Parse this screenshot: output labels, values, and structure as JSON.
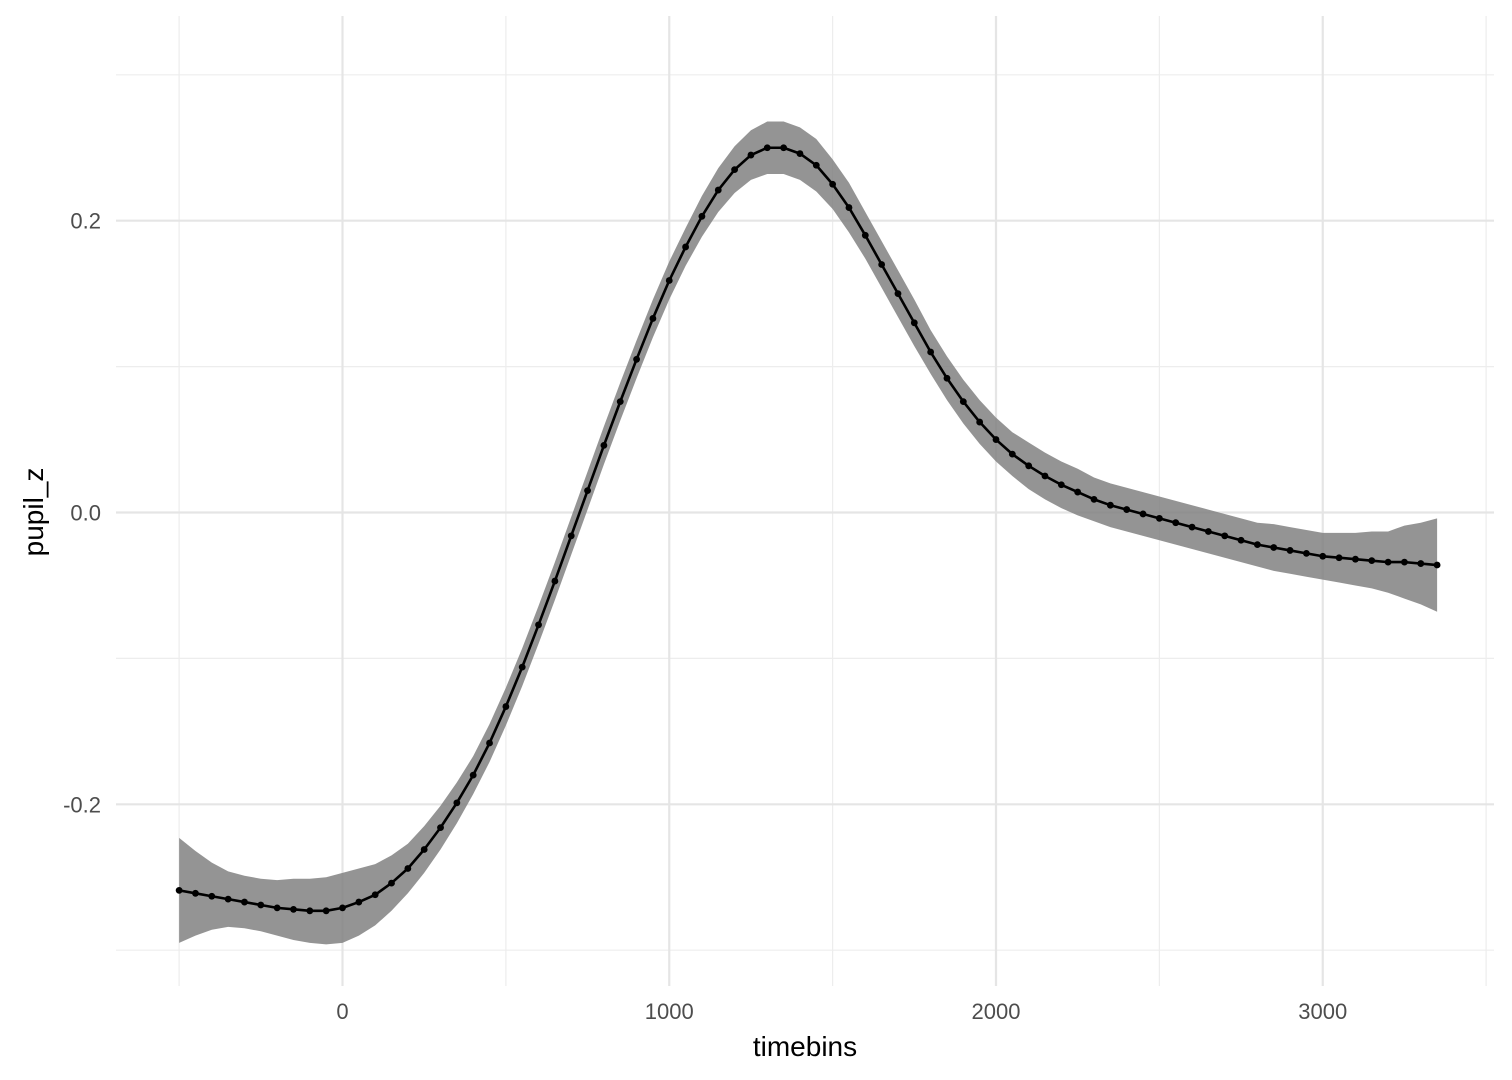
{
  "chart_data": {
    "type": "line",
    "title": "",
    "xlabel": "timebins",
    "ylabel": "pupil_z",
    "xlim": [
      -700,
      3500
    ],
    "ylim": [
      -0.324,
      0.3
    ],
    "x_ticks": [
      0,
      1000,
      2000,
      3000
    ],
    "x_tick_labels": [
      "0",
      "1000",
      "2000",
      "3000"
    ],
    "y_ticks": [
      -0.2,
      0.0,
      0.2
    ],
    "y_tick_labels": [
      "-0.2",
      "0.0",
      "0.2"
    ],
    "grid": true,
    "legend": "none",
    "colors": {
      "line": "#000000",
      "ribbon": "#7f7f7f",
      "grid": "#e5e5e5",
      "background": "#ffffff"
    },
    "series": [
      {
        "x": [
          -500,
          -450,
          -400,
          -350,
          -300,
          -250,
          -200,
          -150,
          -100,
          -50,
          0,
          50,
          100,
          150,
          200,
          250,
          300,
          350,
          400,
          450,
          500,
          550,
          600,
          650,
          700,
          750,
          800,
          850,
          900,
          950,
          1000,
          1050,
          1100,
          1150,
          1200,
          1250,
          1300,
          1350,
          1400,
          1450,
          1500,
          1550,
          1600,
          1650,
          1700,
          1750,
          1800,
          1850,
          1900,
          1950,
          2000,
          2050,
          2100,
          2150,
          2200,
          2250,
          2300,
          2350,
          2400,
          2450,
          2500,
          2550,
          2600,
          2650,
          2700,
          2750,
          2800,
          2850,
          2900,
          2950,
          3000,
          3050,
          3100,
          3150,
          3200,
          3250,
          3300,
          3350
        ],
        "y": [
          -0.259,
          -0.261,
          -0.263,
          -0.265,
          -0.267,
          -0.269,
          -0.271,
          -0.272,
          -0.273,
          -0.273,
          -0.271,
          -0.267,
          -0.262,
          -0.254,
          -0.244,
          -0.231,
          -0.216,
          -0.199,
          -0.18,
          -0.158,
          -0.133,
          -0.106,
          -0.077,
          -0.047,
          -0.016,
          0.015,
          0.046,
          0.076,
          0.105,
          0.133,
          0.159,
          0.182,
          0.203,
          0.221,
          0.235,
          0.245,
          0.25,
          0.25,
          0.246,
          0.238,
          0.225,
          0.209,
          0.19,
          0.17,
          0.15,
          0.13,
          0.11,
          0.092,
          0.076,
          0.062,
          0.05,
          0.04,
          0.032,
          0.025,
          0.019,
          0.014,
          0.009,
          0.005,
          0.002,
          -0.001,
          -0.004,
          -0.007,
          -0.01,
          -0.013,
          -0.016,
          -0.019,
          -0.022,
          -0.024,
          -0.026,
          -0.028,
          -0.03,
          -0.031,
          -0.032,
          -0.033,
          -0.034,
          -0.034,
          -0.035,
          -0.036
        ],
        "lower": [
          -0.295,
          -0.29,
          -0.286,
          -0.284,
          -0.285,
          -0.287,
          -0.29,
          -0.293,
          -0.295,
          -0.296,
          -0.295,
          -0.29,
          -0.283,
          -0.273,
          -0.261,
          -0.247,
          -0.231,
          -0.213,
          -0.193,
          -0.171,
          -0.146,
          -0.119,
          -0.09,
          -0.06,
          -0.029,
          0.002,
          0.033,
          0.063,
          0.092,
          0.12,
          0.146,
          0.169,
          0.189,
          0.206,
          0.219,
          0.228,
          0.232,
          0.232,
          0.228,
          0.22,
          0.208,
          0.192,
          0.174,
          0.154,
          0.134,
          0.114,
          0.095,
          0.077,
          0.061,
          0.047,
          0.035,
          0.025,
          0.016,
          0.009,
          0.003,
          -0.002,
          -0.006,
          -0.01,
          -0.013,
          -0.016,
          -0.019,
          -0.022,
          -0.025,
          -0.028,
          -0.031,
          -0.034,
          -0.037,
          -0.04,
          -0.042,
          -0.044,
          -0.046,
          -0.048,
          -0.05,
          -0.052,
          -0.055,
          -0.059,
          -0.063,
          -0.068
        ],
        "upper": [
          -0.223,
          -0.232,
          -0.24,
          -0.246,
          -0.249,
          -0.251,
          -0.252,
          -0.251,
          -0.251,
          -0.25,
          -0.247,
          -0.244,
          -0.241,
          -0.235,
          -0.227,
          -0.215,
          -0.201,
          -0.185,
          -0.167,
          -0.145,
          -0.12,
          -0.093,
          -0.064,
          -0.034,
          -0.003,
          0.028,
          0.059,
          0.089,
          0.118,
          0.146,
          0.172,
          0.195,
          0.217,
          0.236,
          0.251,
          0.262,
          0.268,
          0.268,
          0.264,
          0.256,
          0.242,
          0.226,
          0.206,
          0.186,
          0.166,
          0.146,
          0.125,
          0.107,
          0.091,
          0.077,
          0.065,
          0.055,
          0.048,
          0.041,
          0.035,
          0.03,
          0.024,
          0.02,
          0.017,
          0.014,
          0.011,
          0.008,
          0.005,
          0.002,
          -0.001,
          -0.004,
          -0.007,
          -0.008,
          -0.01,
          -0.012,
          -0.014,
          -0.014,
          -0.014,
          -0.013,
          -0.013,
          -0.009,
          -0.007,
          -0.004
        ]
      }
    ]
  }
}
